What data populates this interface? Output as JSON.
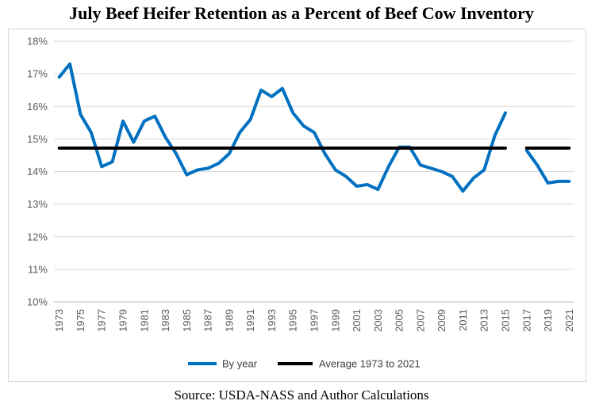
{
  "title": "July Beef Heifer Retention as a Percent of Beef Cow Inventory",
  "source": "Source: USDA-NASS and Author Calculations",
  "chart_data": {
    "type": "line",
    "title": "July Beef Heifer Retention as a Percent of Beef Cow Inventory",
    "xlabel": "",
    "ylabel": "",
    "ylim": [
      10,
      18
    ],
    "yticks": [
      10,
      11,
      12,
      13,
      14,
      15,
      16,
      17,
      18
    ],
    "ytick_labels": [
      "10%",
      "11%",
      "12%",
      "13%",
      "14%",
      "15%",
      "16%",
      "17%",
      "18%"
    ],
    "x_tick_labels": [
      "1973",
      "1975",
      "1977",
      "1979",
      "1981",
      "1983",
      "1985",
      "1987",
      "1989",
      "1991",
      "1993",
      "1995",
      "1997",
      "1999",
      "2001",
      "2003",
      "2005",
      "2007",
      "2009",
      "2011",
      "2013",
      "2015",
      "2017",
      "2019",
      "2021"
    ],
    "grid": true,
    "legend_position": "bottom",
    "x": [
      1973,
      1974,
      1975,
      1976,
      1977,
      1978,
      1979,
      1980,
      1981,
      1982,
      1983,
      1984,
      1985,
      1986,
      1987,
      1988,
      1989,
      1990,
      1991,
      1992,
      1993,
      1994,
      1995,
      1996,
      1997,
      1998,
      1999,
      2000,
      2001,
      2002,
      2003,
      2004,
      2005,
      2006,
      2007,
      2008,
      2009,
      2010,
      2011,
      2012,
      2013,
      2014,
      2015,
      2016,
      2017,
      2018,
      2019,
      2020,
      2021
    ],
    "series": [
      {
        "name": "By year",
        "color": "#0070c0",
        "values": [
          16.9,
          17.3,
          15.75,
          15.2,
          14.15,
          14.3,
          15.55,
          14.9,
          15.55,
          15.7,
          15.05,
          14.55,
          13.9,
          14.05,
          14.1,
          14.25,
          14.55,
          15.2,
          15.6,
          16.5,
          16.3,
          16.55,
          15.8,
          15.4,
          15.2,
          14.55,
          14.05,
          13.85,
          13.55,
          13.6,
          13.45,
          14.15,
          14.75,
          14.75,
          14.2,
          14.1,
          14.0,
          13.85,
          13.4,
          13.8,
          14.05,
          15.1,
          15.8,
          null,
          14.65,
          14.2,
          13.65,
          13.7,
          13.7
        ]
      },
      {
        "name": "Average 1973 to 2021",
        "color": "#000000",
        "values": [
          14.72,
          14.72,
          14.72,
          14.72,
          14.72,
          14.72,
          14.72,
          14.72,
          14.72,
          14.72,
          14.72,
          14.72,
          14.72,
          14.72,
          14.72,
          14.72,
          14.72,
          14.72,
          14.72,
          14.72,
          14.72,
          14.72,
          14.72,
          14.72,
          14.72,
          14.72,
          14.72,
          14.72,
          14.72,
          14.72,
          14.72,
          14.72,
          14.72,
          14.72,
          14.72,
          14.72,
          14.72,
          14.72,
          14.72,
          14.72,
          14.72,
          14.72,
          14.72,
          null,
          14.72,
          14.72,
          14.72,
          14.72,
          14.72
        ]
      }
    ]
  }
}
